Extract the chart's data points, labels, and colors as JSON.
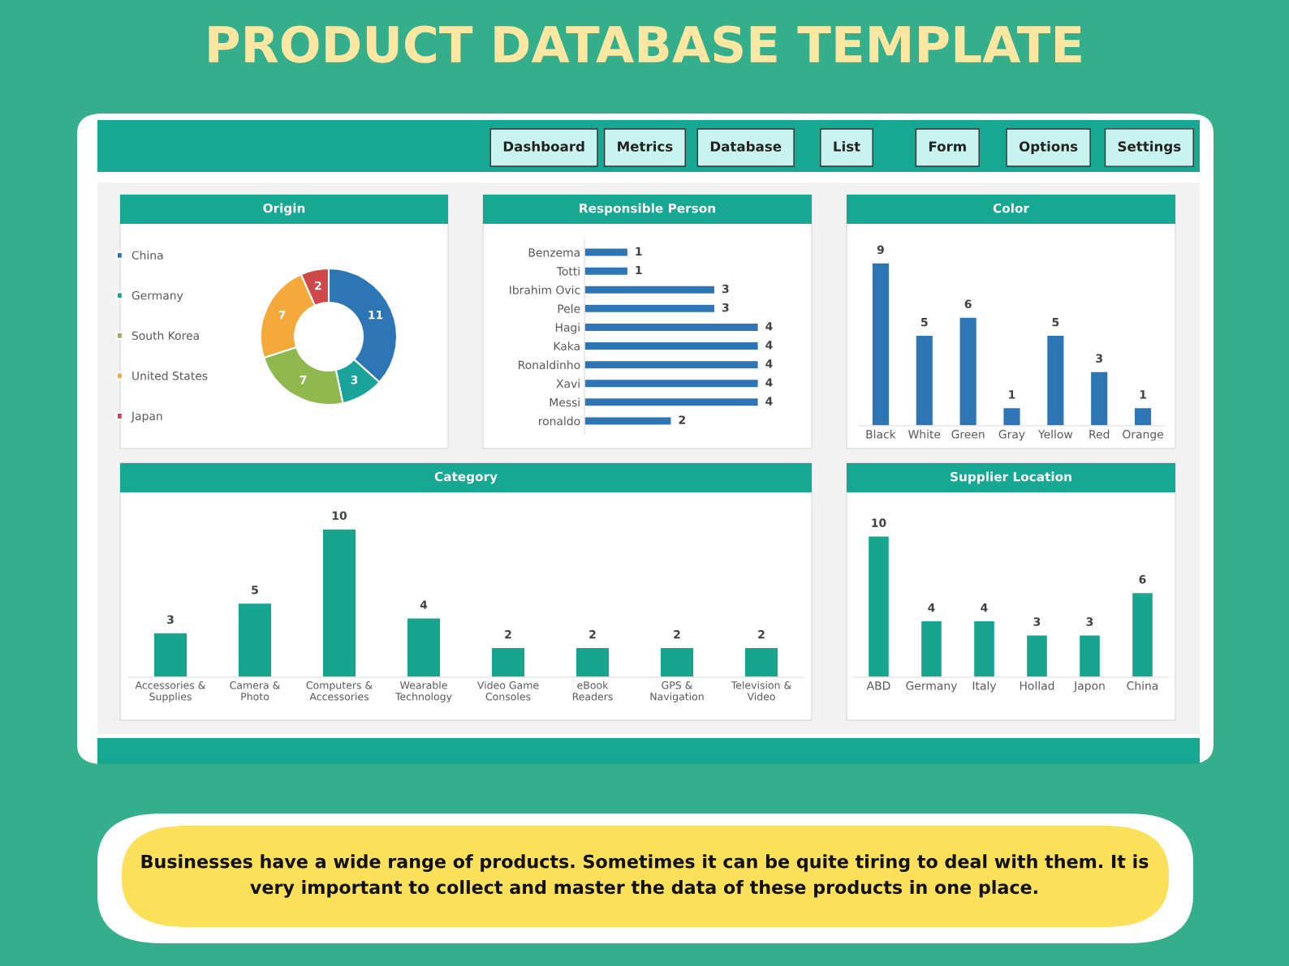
{
  "chart_data": [
    {
      "type": "other",
      "title": "PRODUCT DATABASE TEMPLATE",
      "annotations": [
        "Dashboard",
        "Metrics",
        "Database",
        "List",
        "Form",
        "Options",
        "Settings",
        "Businesses have a wide range of products. Sometimes it can be quite tiring to deal with them. It is\nvery important to collect and master the data of these products in one place."
      ]
    },
    {
      "type": "donut",
      "title": "Origin",
      "categories": [
        "China",
        "Germany",
        "South Korea",
        "United States",
        "Japan"
      ],
      "values": [
        11,
        3,
        7,
        7,
        2
      ],
      "colors": [
        "#2e75b6",
        "#1aa39a",
        "#8fb84e",
        "#f4a93a",
        "#d0494a"
      ],
      "data_labels": true,
      "legend": "left"
    },
    {
      "type": "bar",
      "orientation": "horizontal",
      "title": "Responsible Person",
      "categories": [
        "Benzema",
        "Totti",
        "Ibrahim Ovic",
        "Pele",
        "Hagi",
        "Kaka",
        "Ronaldinho",
        "Xavi",
        "Messi",
        "ronaldo"
      ],
      "values": [
        1,
        1,
        3,
        3,
        4,
        4,
        4,
        4,
        4,
        2
      ],
      "color": "#2e75b6",
      "data_labels": true
    },
    {
      "type": "bar",
      "title": "Color",
      "categories": [
        "Black",
        "White",
        "Green",
        "Gray",
        "Yellow",
        "Red",
        "Orange"
      ],
      "values": [
        9,
        5,
        6,
        1,
        5,
        3,
        1
      ],
      "color": "#2e75b6",
      "data_labels": true
    },
    {
      "type": "bar",
      "title": "Category",
      "categories": [
        "Accessories & Supplies",
        "Camera & Photo",
        "Computers & Accessories",
        "Wearable Technology",
        "Video Game Consoles",
        "eBook Readers",
        "GPS & Navigation",
        "Television & Video"
      ],
      "values": [
        3,
        5,
        10,
        4,
        2,
        2,
        2,
        2
      ],
      "color": "#17a58f",
      "data_labels": true
    },
    {
      "type": "bar",
      "title": "Supplier Location",
      "categories": [
        "ABD",
        "Germany",
        "Italy",
        "Hollad",
        "Japon",
        "China"
      ],
      "values": [
        10,
        4,
        4,
        3,
        3,
        6
      ],
      "color": "#17a58f",
      "data_labels": true
    }
  ]
}
